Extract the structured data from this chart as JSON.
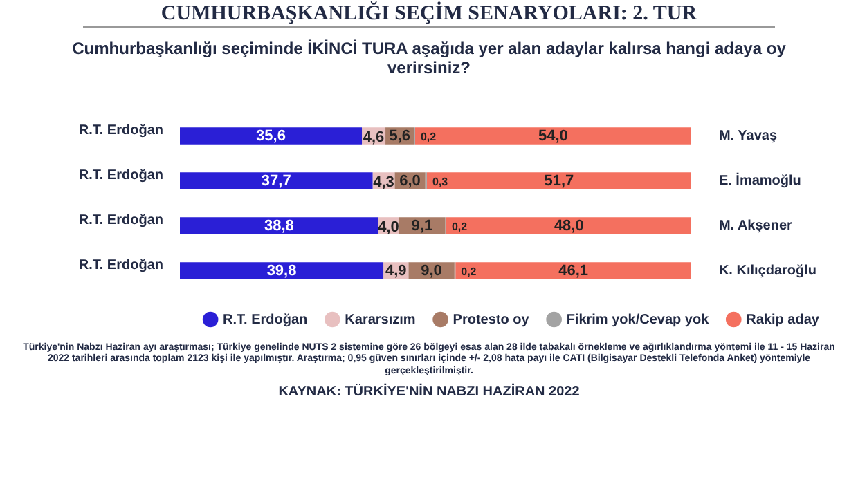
{
  "chart_data": {
    "type": "bar",
    "orientation": "horizontal",
    "stacked": true,
    "title": "CUMHURBAŞKANLIĞI SEÇİM SENARYOLARI: 2. TUR",
    "subtitle": "Cumhurbaşkanlığı seçiminde İKİNCİ TURA aşağıda yer alan adaylar kalırsa hangi adaya oy verirsiniz?",
    "categories": [
      "M. Yavaş",
      "E. İmamoğlu",
      "M. Akşener",
      "K. Kılıçdaroğlu"
    ],
    "xlim": [
      0,
      100
    ],
    "tick_labels": false,
    "grid": false,
    "legend": "bottom",
    "series": [
      {
        "name": "R.T. Erdoğan",
        "color": "#2a1fd6",
        "values": [
          35.6,
          37.7,
          38.8,
          39.8
        ],
        "value_labels": [
          "35,6",
          "37,7",
          "38,8",
          "39,8"
        ]
      },
      {
        "name": "Kararsızım",
        "color": "#e8c0c0",
        "values": [
          4.6,
          4.3,
          4.0,
          4.9
        ],
        "value_labels": [
          "4,6",
          "4,3",
          "4,0",
          "4,9"
        ]
      },
      {
        "name": "Protesto oy",
        "color": "#a87b66",
        "values": [
          5.6,
          6.0,
          9.1,
          9.0
        ],
        "value_labels": [
          "5,6",
          "6,0",
          "9,1",
          "9,0"
        ]
      },
      {
        "name": "Fikrim yok/Cevap yok",
        "color": "#a3a3a3",
        "values": [
          0.2,
          0.3,
          0.2,
          0.2
        ],
        "value_labels": [
          "0,2",
          "0,3",
          "0,2",
          "0,2"
        ]
      },
      {
        "name": "Rakip aday",
        "color": "#f4705f",
        "values": [
          54.0,
          51.7,
          48.0,
          46.1
        ],
        "value_labels": [
          "54,0",
          "51,7",
          "48,0",
          "46,1"
        ]
      }
    ],
    "annotations": [
      "R.T. Erdoğan",
      "R.T. Erdoğan",
      "R.T. Erdoğan",
      "R.T. Erdoğan",
      "Türkiye'nin Nabzı Haziran ayı araştırması; Türkiye genelinde NUTS 2 sistemine göre 26 bölgeyi esas alan 28 ilde tabakalı örnekleme ve ağırlıklandırma yöntemi ile 11 - 15 Haziran 2022 tarihleri arasında toplam 2123 kişi ile yapılmıştır. Araştırma; 0,95 güven sınırları içinde +/- 2,08 hata payı ile CATI (Bilgisayar Destekli Telefonda Anket) yöntemiyle gerçekleştirilmiştir.",
      "KAYNAK: TÜRKİYE'NİN NABZI HAZİRAN 2022"
    ]
  }
}
